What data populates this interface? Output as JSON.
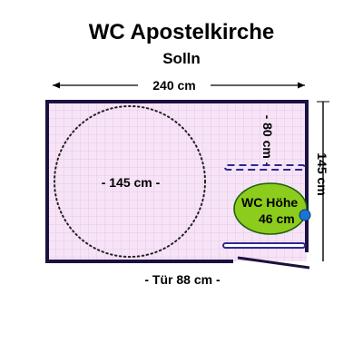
{
  "header": {
    "title": "WC Apostelkirche",
    "subtitle": "Solln"
  },
  "room": {
    "width_label": "240 cm",
    "depth_label": "145 cm",
    "turning_circle_label": "- 145 cm -",
    "side_space_label": "- 80 cm -",
    "door_label": "- Tür 88 cm -",
    "toilet_label_line1": "WC Höhe",
    "toilet_label_line2": "46 cm"
  },
  "colors": {
    "floor": "#f6e4f6",
    "grid": "#e6bde6",
    "wall": "#1a1140",
    "toilet_fill": "#8ccc1c",
    "toilet_outline": "#1e5e12",
    "flush_button": "#1a74d6",
    "grab_bar": "#2c2a90",
    "text": "#000000"
  }
}
